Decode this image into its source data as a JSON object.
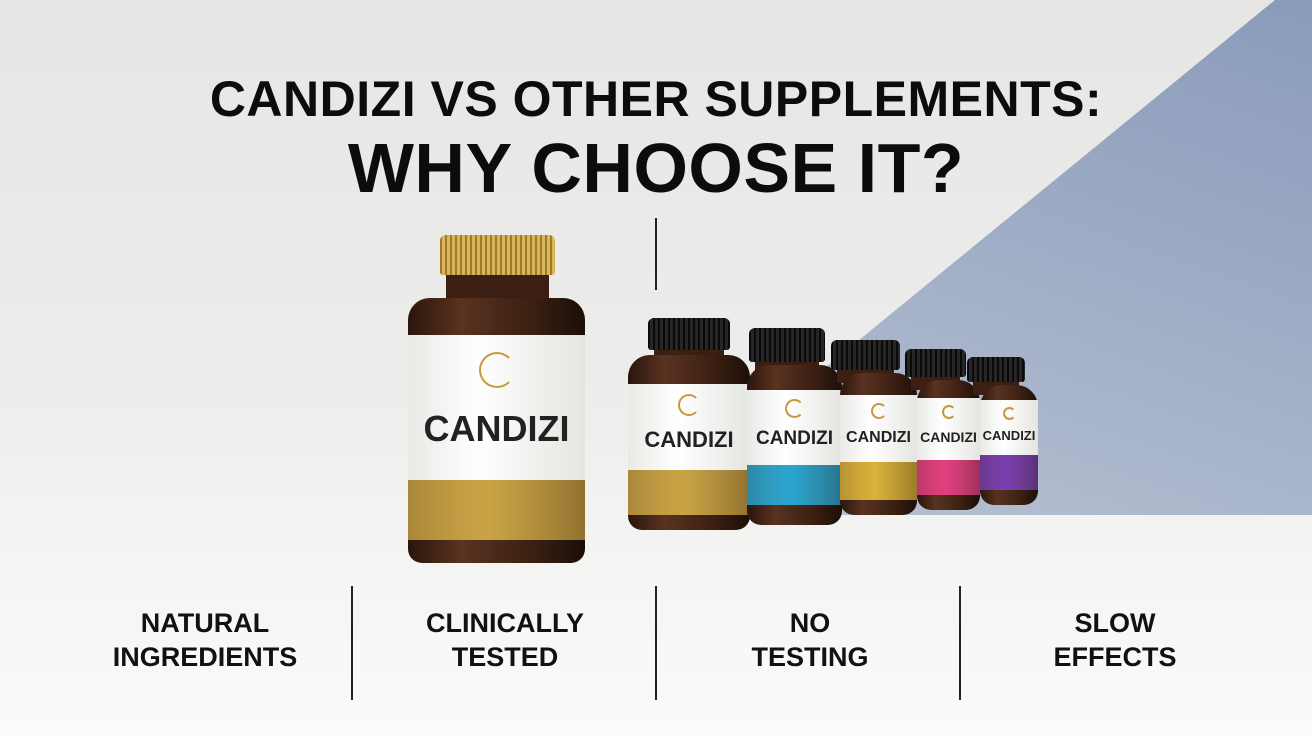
{
  "title": {
    "line1": "CANDIZI VS OTHER SUPPLEMENTS:",
    "line2": "WHY CHOOSE IT?"
  },
  "features": [
    {
      "line1": "NATURAL",
      "line2": "INGREDIENTS"
    },
    {
      "line1": "CLINICALLY",
      "line2": "TESTED"
    },
    {
      "line1": "NO",
      "line2": "TESTING"
    },
    {
      "line1": "SLOW",
      "line2": "EFFECTS"
    }
  ],
  "bottles": [
    {
      "brand": "CANDIZI",
      "band_color": "#c9a445",
      "cap": "gold"
    },
    {
      "brand": "CANDIZI",
      "band_color": "#c9a445",
      "cap": "black"
    },
    {
      "brand": "CANDIZI",
      "band_color": "#2aa6cf",
      "cap": "black"
    },
    {
      "brand": "CANDIZI",
      "band_color": "#d9b23a",
      "cap": "black"
    },
    {
      "brand": "CANDIZI",
      "band_color": "#e0407f",
      "cap": "black"
    },
    {
      "brand": "CANDIZI",
      "band_color": "#7a3fb0",
      "cap": "black"
    }
  ]
}
